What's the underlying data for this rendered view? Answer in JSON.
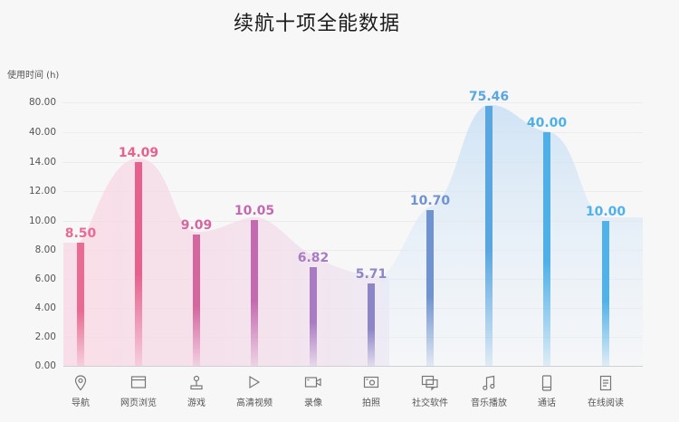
{
  "title": "续航十项全能数据",
  "y_axis_label": "使用时间 (h)",
  "y_ticks": [
    "80.00",
    "40.00",
    "14.00",
    "12.00",
    "10.00",
    "8.00",
    "6.00",
    "4.00",
    "2.00",
    "0.00"
  ],
  "categories": [
    {
      "label": "导航",
      "icon": "location-pin-icon",
      "value": "8.50",
      "color": "#e96a92"
    },
    {
      "label": "网页浏览",
      "icon": "browser-window-icon",
      "value": "14.09",
      "color": "#e8608e"
    },
    {
      "label": "游戏",
      "icon": "joystick-icon",
      "value": "9.09",
      "color": "#d566a0"
    },
    {
      "label": "高清视频",
      "icon": "play-icon",
      "value": "10.05",
      "color": "#c46ab0"
    },
    {
      "label": "录像",
      "icon": "video-camera-icon",
      "value": "6.82",
      "color": "#a87bc2"
    },
    {
      "label": "拍照",
      "icon": "camera-icon",
      "value": "5.71",
      "color": "#8c86c6"
    },
    {
      "label": "社交软件",
      "icon": "chat-icon",
      "value": "10.70",
      "color": "#6f93d0"
    },
    {
      "label": "音乐播放",
      "icon": "music-note-icon",
      "value": "75.46",
      "color": "#5aa6e0"
    },
    {
      "label": "通话",
      "icon": "phone-icon",
      "value": "40.00",
      "color": "#4fb0e8"
    },
    {
      "label": "在线阅读",
      "icon": "document-icon",
      "value": "10.00",
      "color": "#4fb2ea"
    }
  ],
  "chart_data": {
    "type": "bar",
    "title": "续航十项全能数据",
    "xlabel": "",
    "ylabel": "使用时间 (h)",
    "categories": [
      "导航",
      "网页浏览",
      "游戏",
      "高清视频",
      "录像",
      "拍照",
      "社交软件",
      "音乐播放",
      "通话",
      "在线阅读"
    ],
    "values": [
      8.5,
      14.09,
      9.09,
      10.05,
      6.82,
      5.71,
      10.7,
      75.46,
      40.0,
      10.0
    ],
    "y_ticks": [
      0,
      2,
      4,
      6,
      8,
      10,
      12,
      14,
      40,
      80
    ],
    "y_scale": "non-linear (equal spacing between ticks 0,2,4,...,14,40,80)",
    "ylim": [
      0,
      80
    ],
    "grid": true,
    "legend": null
  }
}
